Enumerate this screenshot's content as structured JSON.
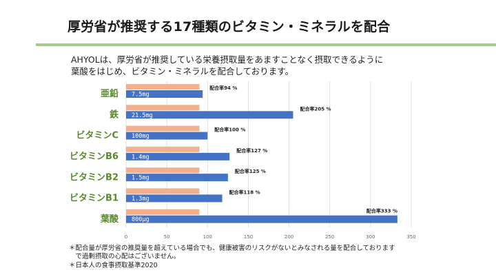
{
  "title": "厚労省が推奨する17種類のビタミン・ミネラルを配合",
  "intro": {
    "line1": "AHYOLは、厚労省が推奨している栄養摂取量をあますことなく摂取できるように",
    "line2": "葉酸をはじめ、ビタミン・ミネラルを配合しております。"
  },
  "colors": {
    "accent_rule": "#a7c98a",
    "label_green": "#5a8a2e",
    "ref_bar": "#f2b08f",
    "main_bar": "#4472c4"
  },
  "chart_data": {
    "type": "bar",
    "orientation": "horizontal",
    "categories": [
      "亜鉛",
      "鉄",
      "ビタミンC",
      "ビタミンB6",
      "ビタミンB2",
      "ビタミンB1",
      "葉酸"
    ],
    "series": [
      {
        "values": [
          90,
          90,
          90,
          90,
          90,
          90,
          90
        ]
      },
      {
        "values": [
          94,
          205,
          100,
          127,
          125,
          118,
          333
        ]
      }
    ],
    "bar_labels": [
      "7.5mg",
      "21.5mg",
      "100mg",
      "1.4mg",
      "1.5mg",
      "1.3mg",
      "800μg"
    ],
    "ratio_labels": [
      "配合率94 %",
      "配合率205 %",
      "配合率100 %",
      "配合率127 %",
      "配合率125 %",
      "配合率118 %",
      "配合率333 %"
    ],
    "xticks": [
      "0",
      "50",
      "100",
      "150",
      "200",
      "250",
      "300",
      "350"
    ],
    "xlim": [
      0,
      350
    ],
    "grid": true
  },
  "footnotes": {
    "note1_line1": "＊配合量が厚労省の推奨量を超えている場合でも、健康被害のリスクがないとみなされる量を配合しております",
    "note1_line2": "　で過剰摂取の心配はございません。",
    "note2": "＊日本人の食事摂取基準2020"
  }
}
